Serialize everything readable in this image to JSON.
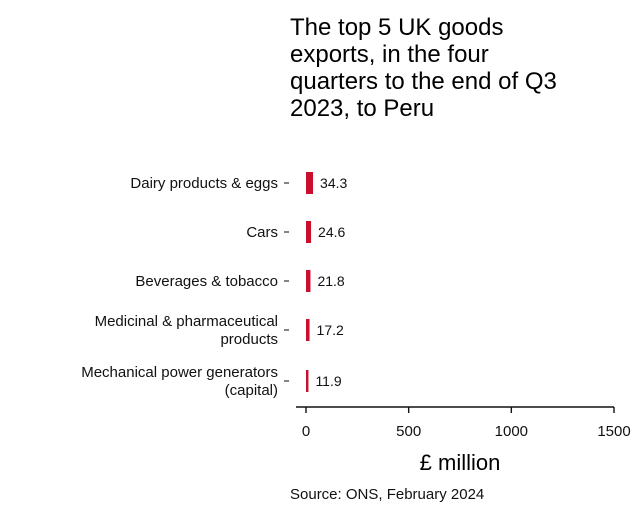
{
  "chart_data": {
    "type": "bar",
    "orientation": "horizontal",
    "title": "The top 5 UK goods\nexports, in the four\nquarters to the end of Q3\n2023, to Peru",
    "categories": [
      [
        "Dairy products & eggs"
      ],
      [
        "Cars"
      ],
      [
        "Beverages & tobacco"
      ],
      [
        "Medicinal & pharmaceutical",
        "products"
      ],
      [
        "Mechanical power generators",
        "(capital)"
      ]
    ],
    "values": [
      34.3,
      24.6,
      21.8,
      17.2,
      11.9
    ],
    "value_labels": [
      "34.3",
      "24.6",
      "21.8",
      "17.2",
      "11.9"
    ],
    "xlabel": "£ million",
    "xlim": [
      0,
      1500
    ],
    "xticks": [
      0,
      500,
      1000,
      1500
    ],
    "xtick_labels": [
      "0",
      "500",
      "1000",
      "1500"
    ],
    "grid": false,
    "bar_color": "#c8102e",
    "source": "Source: ONS, February 2024"
  }
}
